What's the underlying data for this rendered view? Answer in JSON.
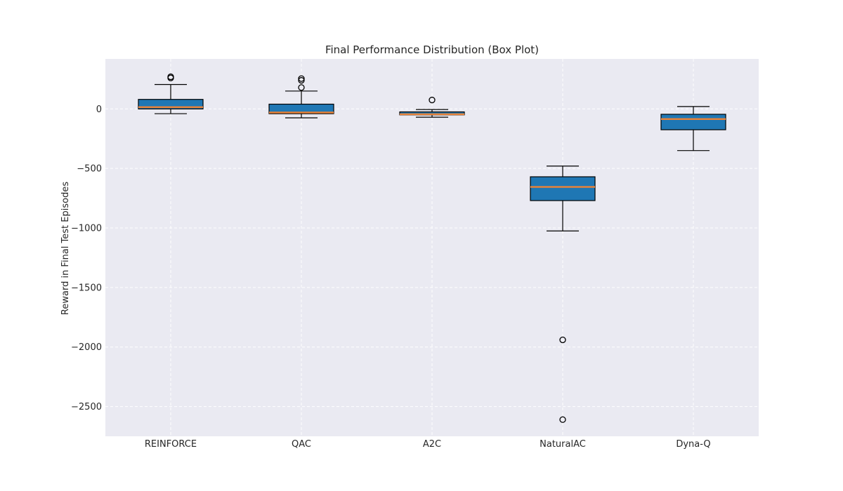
{
  "chart_data": {
    "type": "box",
    "title": "Final Performance Distribution (Box Plot)",
    "xlabel": "",
    "ylabel": "Reward in Final Test Episodes",
    "ylim": [
      -2750,
      420
    ],
    "yticks": [
      0,
      -500,
      -1000,
      -1500,
      -2000,
      -2500
    ],
    "ytick_labels": [
      "0",
      "−500",
      "−1000",
      "−1500",
      "−2000",
      "−2500"
    ],
    "grid": true,
    "categories": [
      "REINFORCE",
      "QAC",
      "A2C",
      "NaturalAC",
      "Dyna-Q"
    ],
    "boxes": [
      {
        "name": "REINFORCE",
        "whisker_low": -40,
        "q1": 0,
        "median": 15,
        "q3": 80,
        "whisker_high": 205,
        "outliers": [
          260,
          270
        ]
      },
      {
        "name": "QAC",
        "whisker_low": -75,
        "q1": -40,
        "median": -30,
        "q3": 40,
        "whisker_high": 150,
        "outliers": [
          180,
          240,
          255
        ]
      },
      {
        "name": "A2C",
        "whisker_low": -70,
        "q1": -50,
        "median": -45,
        "q3": -25,
        "whisker_high": -5,
        "outliers": [
          75
        ]
      },
      {
        "name": "NaturalAC",
        "whisker_low": -1025,
        "q1": -770,
        "median": -655,
        "q3": -570,
        "whisker_high": -480,
        "outliers": [
          -1940,
          -2610
        ]
      },
      {
        "name": "Dyna-Q",
        "whisker_low": -350,
        "q1": -175,
        "median": -85,
        "q3": -45,
        "whisker_high": 20,
        "outliers": []
      }
    ],
    "colors": {
      "box_fill": "#1f77b4",
      "median": "#e5823a",
      "edge": "#000000",
      "plot_bg": "#eaeaf2",
      "grid": "#ffffff"
    }
  }
}
